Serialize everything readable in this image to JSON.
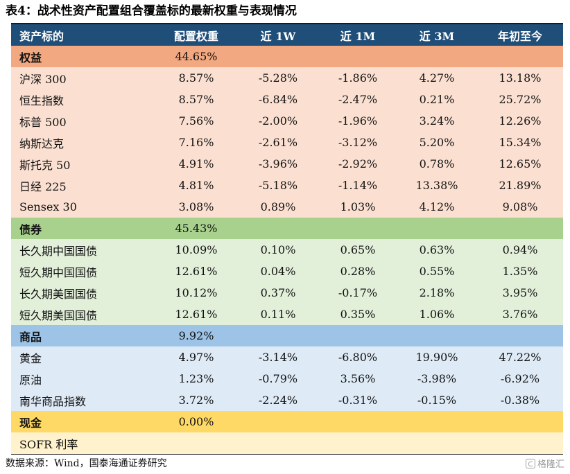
{
  "title": "表4：战术性资产配置组合覆盖标的最新权重与表现情况",
  "colors": {
    "header_bg": "#1f4e79",
    "equity_cat": "#f2a880",
    "equity_row": "#fbe0d2",
    "bond_cat": "#a9d18e",
    "bond_row": "#e2efd9",
    "commodity_cat": "#9dc3e6",
    "commodity_row": "#deebf7",
    "cash_cat": "#ffd966",
    "cash_row": "#fff2cc"
  },
  "columns": [
    "资产标的",
    "配置权重",
    "近 1W",
    "近 1M",
    "近 3M",
    "年初至今"
  ],
  "groups": [
    {
      "key": "equity",
      "name": "权益",
      "weight": "44.65%",
      "rows": [
        {
          "name": "沪深 300",
          "weight": "8.57%",
          "w1": "-5.28%",
          "m1": "-1.86%",
          "m3": "4.27%",
          "ytd": "13.18%"
        },
        {
          "name": "恒生指数",
          "weight": "8.57%",
          "w1": "-6.84%",
          "m1": "-2.47%",
          "m3": "0.21%",
          "ytd": "25.72%"
        },
        {
          "name": "标普 500",
          "weight": "7.56%",
          "w1": "-2.00%",
          "m1": "-1.96%",
          "m3": "3.24%",
          "ytd": "12.26%"
        },
        {
          "name": "纳斯达克",
          "weight": "7.16%",
          "w1": "-2.61%",
          "m1": "-3.12%",
          "m3": "5.20%",
          "ytd": "15.34%"
        },
        {
          "name": "斯托克 50",
          "weight": "4.91%",
          "w1": "-3.96%",
          "m1": "-2.92%",
          "m3": "0.78%",
          "ytd": "12.65%"
        },
        {
          "name": "日经 225",
          "weight": "4.81%",
          "w1": "-5.18%",
          "m1": "-1.14%",
          "m3": "13.38%",
          "ytd": "21.89%"
        },
        {
          "name": "Sensex 30",
          "weight": "3.08%",
          "w1": "0.89%",
          "m1": "1.03%",
          "m3": "4.12%",
          "ytd": "9.08%"
        }
      ]
    },
    {
      "key": "bond",
      "name": "债券",
      "weight": "45.43%",
      "rows": [
        {
          "name": "长久期中国国债",
          "weight": "10.09%",
          "w1": "0.10%",
          "m1": "0.65%",
          "m3": "0.63%",
          "ytd": "0.94%"
        },
        {
          "name": "短久期中国国债",
          "weight": "12.61%",
          "w1": "0.04%",
          "m1": "0.28%",
          "m3": "0.55%",
          "ytd": "1.35%"
        },
        {
          "name": "长久期美国国债",
          "weight": "10.12%",
          "w1": "0.37%",
          "m1": "-0.17%",
          "m3": "2.18%",
          "ytd": "3.95%"
        },
        {
          "name": "短久期美国国债",
          "weight": "12.61%",
          "w1": "0.11%",
          "m1": "0.35%",
          "m3": "1.06%",
          "ytd": "3.76%"
        }
      ]
    },
    {
      "key": "commodity",
      "name": "商品",
      "weight": "9.92%",
      "rows": [
        {
          "name": "黄金",
          "weight": "4.97%",
          "w1": "-3.14%",
          "m1": "-6.80%",
          "m3": "19.90%",
          "ytd": "47.22%"
        },
        {
          "name": "原油",
          "weight": "1.23%",
          "w1": "-0.79%",
          "m1": "3.56%",
          "m3": "-3.98%",
          "ytd": "-6.92%"
        },
        {
          "name": "南华商品指数",
          "weight": "3.72%",
          "w1": "-2.24%",
          "m1": "-0.31%",
          "m3": "-0.15%",
          "ytd": "-0.38%"
        }
      ]
    },
    {
      "key": "cash",
      "name": "现金",
      "weight": "0.00%",
      "rows": [
        {
          "name": "SOFR 利率",
          "weight": "",
          "w1": "",
          "m1": "",
          "m3": "",
          "ytd": ""
        }
      ]
    }
  ],
  "source": "数据来源：Wind，国泰海通证券研究",
  "watermark": "格隆汇"
}
